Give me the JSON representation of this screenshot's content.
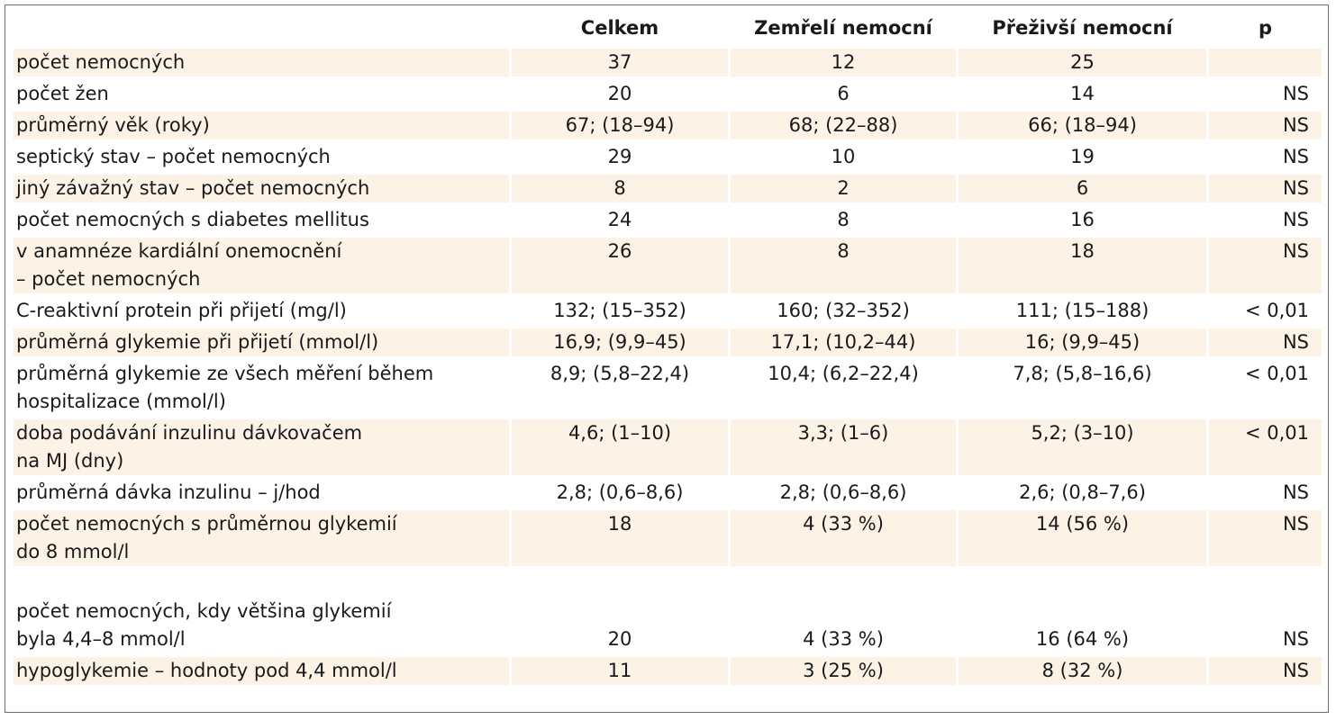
{
  "table": {
    "headers": [
      "",
      "Celkem",
      "Zemřelí nemocní",
      "Přeživší nemocní",
      "p"
    ],
    "rows": [
      {
        "label": [
          "počet nemocných"
        ],
        "total": "37",
        "dead": "12",
        "alive": "25",
        "p": ""
      },
      {
        "label": [
          "počet žen"
        ],
        "total": "20",
        "dead": "6",
        "alive": "14",
        "p": "NS"
      },
      {
        "label": [
          "průměrný věk (roky)"
        ],
        "total": "67; (18–94)",
        "dead": "68; (22–88)",
        "alive": "66; (18–94)",
        "p": "NS"
      },
      {
        "label": [
          "septický stav – počet nemocných"
        ],
        "total": "29",
        "dead": "10",
        "alive": "19",
        "p": "NS"
      },
      {
        "label": [
          "jiný závažný stav – počet nemocných"
        ],
        "total": "8",
        "dead": "2",
        "alive": "6",
        "p": "NS"
      },
      {
        "label": [
          "počet nemocných s diabetes mellitus"
        ],
        "total": "24",
        "dead": "8",
        "alive": "16",
        "p": "NS"
      },
      {
        "label": [
          "v anamnéze kardiální onemocnění",
          "– počet nemocných"
        ],
        "total": "26",
        "dead": "8",
        "alive": "18",
        "p": "NS"
      },
      {
        "label": [
          "C-reaktivní protein při přijetí (mg/l)"
        ],
        "total": "132; (15–352)",
        "dead": "160; (32–352)",
        "alive": "111; (15–188)",
        "p": "< 0,01"
      },
      {
        "label": [
          "průměrná glykemie při přijetí (mmol/l)"
        ],
        "total": "16,9; (9,9–45)",
        "dead": "17,1; (10,2–44)",
        "alive": "16; (9,9–45)",
        "p": "NS"
      },
      {
        "label": [
          "průměrná glykemie ze všech měření během",
          "hospitalizace (mmol/l)"
        ],
        "total": "8,9; (5,8–22,4)",
        "dead": "10,4; (6,2–22,4)",
        "alive": "7,8; (5,8–16,6)",
        "p": "< 0,01"
      },
      {
        "label": [
          "doba podávání inzulinu dávkovačem",
          "na MJ (dny)"
        ],
        "total": "4,6; (1–10)",
        "dead": "3,3; (1–6)",
        "alive": "5,2; (3–10)",
        "p": "< 0,01"
      },
      {
        "label": [
          "průměrná dávka inzulinu – j/hod"
        ],
        "total": "2,8; (0,6–8,6)",
        "dead": "2,8; (0,6–8,6)",
        "alive": "2,6; (0,8–7,6)",
        "p": "NS"
      },
      {
        "label": [
          "počet nemocných s průměrnou glykemií",
          "do 8 mmol/l"
        ],
        "total": "18",
        "dead": "4 (33 %)",
        "alive": "14 (56 %)",
        "p": "NS"
      },
      {
        "label": [
          "počet nemocných, kdy většina glykemií",
          "byla 4,4–8 mmol/l"
        ],
        "total": "20",
        "dead": "4 (33 %)",
        "alive": "16 (64 %)",
        "p": "NS"
      },
      {
        "label": [
          "hypoglykemie – hodnoty pod 4,4 mmol/l"
        ],
        "total": "11",
        "dead": "3 (25 %)",
        "alive": "8 (32 %)",
        "p": "NS"
      }
    ]
  },
  "colors": {
    "row_shade": "#fdf2e6",
    "border": "#6e6e6e",
    "text": "#1a1a1a"
  }
}
